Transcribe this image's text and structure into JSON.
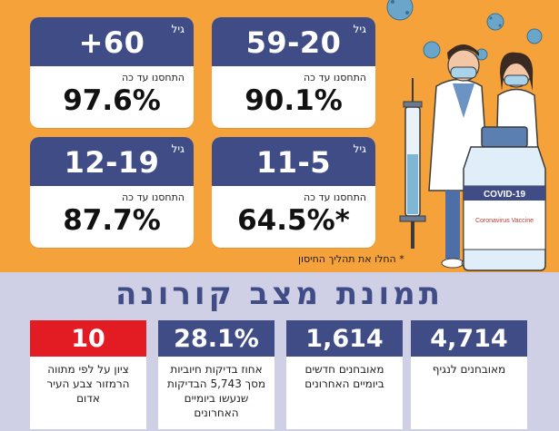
{
  "vaccination": {
    "cards": [
      {
        "age_label": "גיל",
        "age": "+60",
        "sub": "התחסנו עד כה",
        "pct": "97.6%"
      },
      {
        "age_label": "גיל",
        "age": "59-20",
        "sub": "התחסנו עד כה",
        "pct": "90.1%"
      },
      {
        "age_label": "גיל",
        "age": "12-19",
        "sub": "התחסנו עד כה",
        "pct": "87.7%"
      },
      {
        "age_label": "גיל",
        "age": "11-5",
        "sub": "התחסנו עד כה",
        "pct": "64.5%*"
      }
    ],
    "footnote": "* החלו את תהליך החיסון"
  },
  "illustration": {
    "vial_label": "COVID-19",
    "vial_text": "Coronavirus Vaccine"
  },
  "corona": {
    "title": "תמונת מצב קורונה",
    "stats": [
      {
        "value": "10",
        "text": "ציון על לפי מתווה הרמזור צבע העיר אדום"
      },
      {
        "value": "28.1%",
        "text": "אחוז בדיקות חיוביות מסך 5,743 הבדיקות שנעשו ביומיים האחרונים"
      },
      {
        "value": "1,614",
        "text": "מאובחנים חדשים ביומיים האחרונים"
      },
      {
        "value": "4,714",
        "text": "מאובחנים לנגיף"
      }
    ]
  },
  "colors": {
    "orange": "#f6a23b",
    "navy": "#3f4c86",
    "red": "#e31b23",
    "lavender": "#cfcfe6"
  }
}
